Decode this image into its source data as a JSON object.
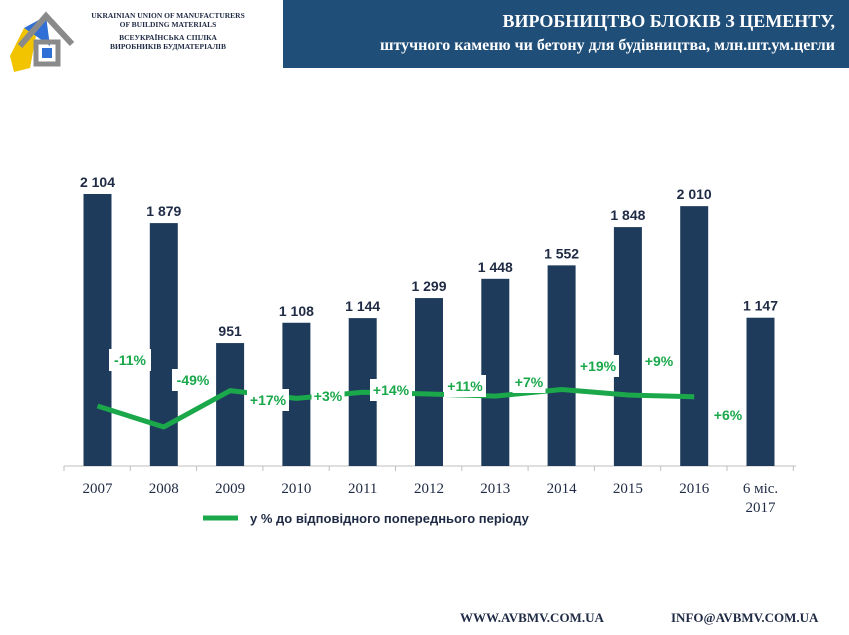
{
  "header": {
    "title_line1": "ВИРОБНИЦТВО БЛОКІВ З ЦЕМЕНТУ,",
    "title_line2": "штучного каменю чи бетону для будівництва, млн.шт.ум.цегли",
    "bg_color": "#1f4e79"
  },
  "organization": {
    "name_en_line1": "UKRAINIAN UNION OF MANUFACTURERS",
    "name_en_line2": "OF BUILDING MATERIALS",
    "name_ua_line1": "ВСЕУКРАЇНСЬКА СПІЛКА",
    "name_ua_line2": "ВИРОБНИКІВ БУДМАТЕРІАЛІВ",
    "logo": "house-logo-icon"
  },
  "chart_data": {
    "type": "bar",
    "categories": [
      "2007",
      "2008",
      "2009",
      "2010",
      "2011",
      "2012",
      "2013",
      "2014",
      "2015",
      "2016",
      "6 міс. 2017"
    ],
    "bar_values": [
      2104,
      1879,
      951,
      1108,
      1144,
      1299,
      1448,
      1552,
      1848,
      2010,
      1147
    ],
    "bar_labels": [
      "2 104",
      "1 879",
      "951",
      "1 108",
      "1 144",
      "1 299",
      "1 448",
      "1 552",
      "1 848",
      "2 010",
      "1 147"
    ],
    "bar_color": "#1f3b5c",
    "line_series": {
      "name": "у % до відповідного попереднього періоду",
      "color": "#1aa84b",
      "values": [
        -11,
        -49,
        17,
        3,
        14,
        11,
        7,
        19,
        9,
        6
      ],
      "labels": [
        "-11%",
        "-49%",
        "+17%",
        "+3%",
        "+14%",
        "+11%",
        "+7%",
        "+19%",
        "+9%",
        "+6%"
      ]
    },
    "legend_position": "bottom-left"
  },
  "footer": {
    "website": "WWW.AVBMV.COM.UA",
    "email": "INFO@AVBMV.COM.UA"
  }
}
